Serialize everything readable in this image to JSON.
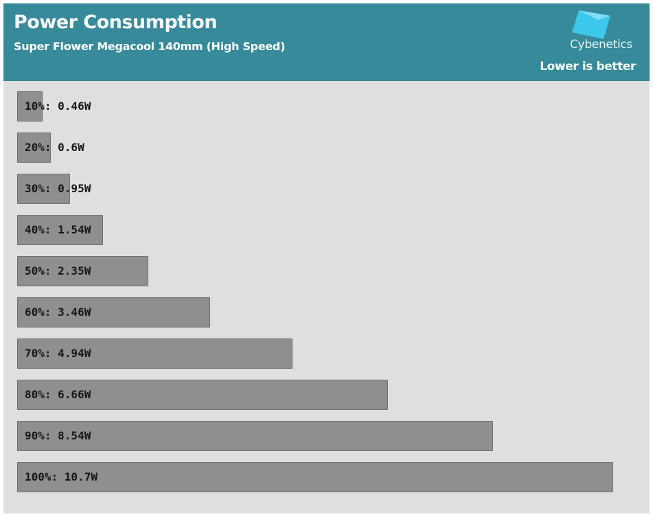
{
  "header": {
    "title": "Power Consumption",
    "subtitle": "Super Flower Megacool 140mm (High Speed)",
    "brand": "Cybenetics",
    "note": "Lower is better"
  },
  "colors": {
    "header_bg": "#368a99",
    "plot_bg": "#dfdfdf",
    "bar_fill": "#8f8f8f",
    "logo_accent": "#3cc8ea"
  },
  "chart_data": {
    "type": "bar",
    "orientation": "horizontal",
    "title": "Power Consumption",
    "subtitle": "Super Flower Megacool 140mm (High Speed)",
    "unit": "W",
    "categories": [
      "10%",
      "20%",
      "30%",
      "40%",
      "50%",
      "60%",
      "70%",
      "80%",
      "90%",
      "100%"
    ],
    "values": [
      0.46,
      0.6,
      0.95,
      1.54,
      2.35,
      3.46,
      4.94,
      6.66,
      8.54,
      10.7
    ],
    "labels": [
      "10%: 0.46W",
      "20%: 0.6W",
      "30%: 0.95W",
      "40%: 1.54W",
      "50%: 2.35W",
      "60%: 3.46W",
      "70%: 4.94W",
      "80%: 6.66W",
      "90%: 8.54W",
      "100%: 10.7W"
    ],
    "xlim": [
      0,
      10.7
    ],
    "grid": false,
    "legend": "none"
  }
}
